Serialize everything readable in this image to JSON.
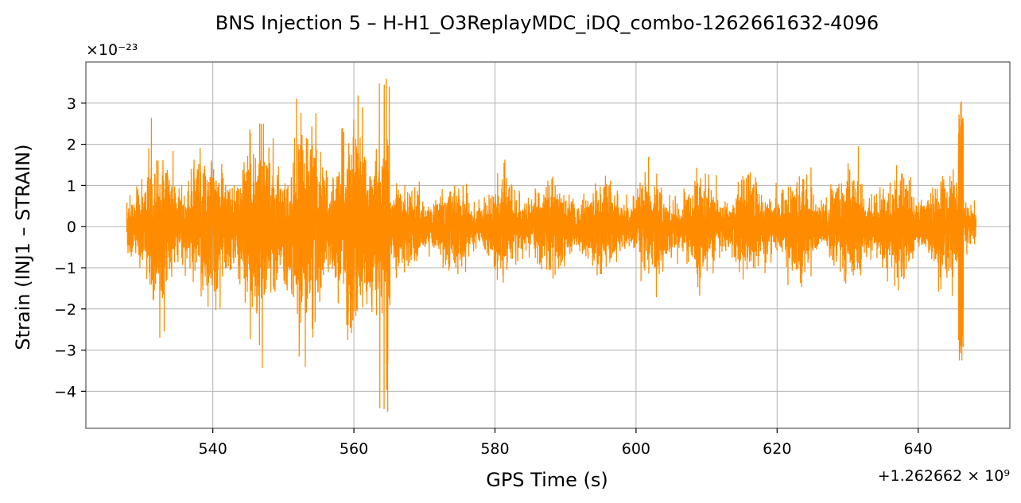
{
  "chart_data": {
    "type": "line",
    "title": "BNS Injection 5 – H-H1_O3ReplayMDC_iDQ_combo-1262661632-4096",
    "xlabel": "GPS Time (s)",
    "ylabel": "Strain (INJ1 – STRAIN)",
    "y_scale_label": "×10⁻²³",
    "x_offset_label": "+1.262662 × 10⁹",
    "xlim": [
      522,
      653
    ],
    "ylim": [
      -4.9,
      4.0
    ],
    "x_ticks": [
      540,
      560,
      580,
      600,
      620,
      640
    ],
    "x_tick_labels": [
      "540",
      "560",
      "580",
      "600",
      "620",
      "640"
    ],
    "y_ticks": [
      -4,
      -3,
      -2,
      -1,
      0,
      1,
      2,
      3
    ],
    "y_tick_labels": [
      "−4",
      "−3",
      "−2",
      "−1",
      "0",
      "1",
      "2",
      "3"
    ],
    "grid": true,
    "colors": {
      "line": "#ff8c00"
    },
    "series": [
      {
        "x_range": [
          527.8,
          648.2
        ],
        "segments": [
          {
            "x": [
              527.8,
              565.1
            ],
            "env_upper": [
              1.7,
              3.0
            ],
            "env_lower": [
              -1.6,
              -3.0
            ],
            "peak_max": 3.6,
            "peak_min": -4.5
          },
          {
            "x": [
              565.1,
              645.5
            ],
            "env_upper": [
              1.1,
              1.4
            ],
            "env_lower": [
              -1.1,
              -1.4
            ]
          },
          {
            "x": [
              645.5,
              646.6
            ],
            "peak_max": 3.0,
            "peak_min": -3.25
          },
          {
            "x": [
              646.6,
              648.2
            ],
            "env_upper": [
              1.0,
              0.9
            ],
            "env_lower": [
              -1.0,
              -0.9
            ]
          }
        ]
      }
    ]
  }
}
